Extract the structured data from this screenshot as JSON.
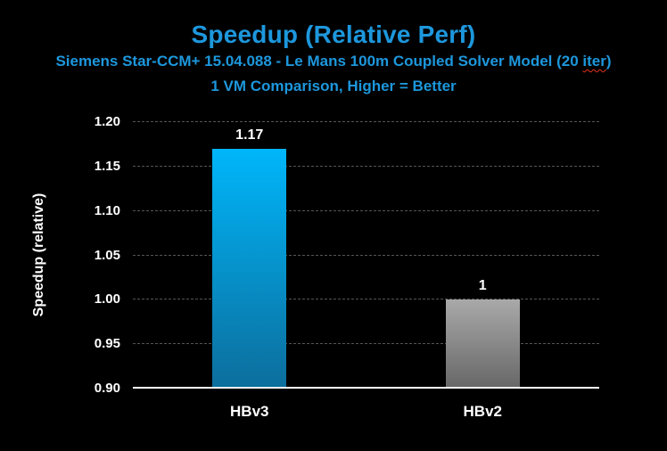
{
  "chart_data": {
    "type": "bar",
    "title": "Speedup (Relative Perf)",
    "subtitle1": "Siemens Star-CCM+ 15.04.088 - Le Mans 100m Coupled Solver Model (20 iter)",
    "subtitle1_parts": {
      "pre": "Siemens Star-CCM+ 15.04.088 - Le Mans 100m Coupled Solver Model (20 ",
      "misspelled": "iter",
      "post": ")"
    },
    "subtitle2": "1 VM Comparison, Higher = Better",
    "ylabel": "Speedup (relative)",
    "xlabel": "",
    "categories": [
      "HBv3",
      "HBv2"
    ],
    "values": [
      1.17,
      1.0
    ],
    "value_labels": [
      "1.17",
      "1"
    ],
    "ylim": [
      0.9,
      1.2
    ],
    "ytick_step": 0.05,
    "yticks": [
      "0.90",
      "0.95",
      "1.00",
      "1.05",
      "1.10",
      "1.15",
      "1.20"
    ],
    "grid": "horizontal-dashed",
    "legend": "none",
    "background": "#000000",
    "bar_gradients": [
      {
        "top": "#00b6fa",
        "bottom": "#0c6e9c"
      },
      {
        "top": "#a9a9a9",
        "bottom": "#676767"
      }
    ],
    "colors": {
      "title_blue": "#1d97dc",
      "gridline": "#555555",
      "axis_line": "#ffffff",
      "text": "#ffffff",
      "spellcheck_squiggle": "#e0321e"
    }
  }
}
